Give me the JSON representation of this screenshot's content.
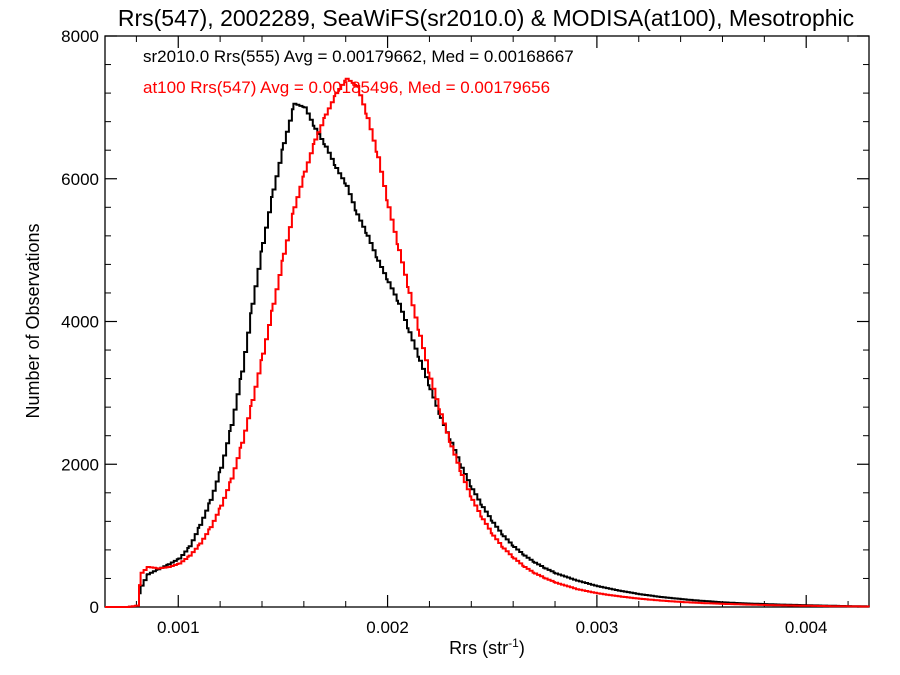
{
  "chart_data": {
    "type": "step-histogram",
    "title": "Rrs(547), 2002289, SeaWiFS(sr2010.0) & MODISA(at100), Mesotrophic",
    "xlabel": "Rrs (str",
    "xlabel_sup": "-1",
    "xlabel_end": ")",
    "ylabel": "Number of Observations",
    "xlim": [
      0.00065,
      0.0043
    ],
    "ylim": [
      0,
      8000
    ],
    "x_ticks": [
      {
        "value": 0.001,
        "label": "0.001"
      },
      {
        "value": 0.002,
        "label": "0.002"
      },
      {
        "value": 0.003,
        "label": "0.003"
      },
      {
        "value": 0.004,
        "label": "0.004"
      }
    ],
    "y_ticks": [
      {
        "value": 0,
        "label": "0"
      },
      {
        "value": 2000,
        "label": "2000"
      },
      {
        "value": 4000,
        "label": "4000"
      },
      {
        "value": 6000,
        "label": "6000"
      },
      {
        "value": 8000,
        "label": "8000"
      }
    ],
    "legend_placement": "top-left",
    "grid": false,
    "series": [
      {
        "legend_text": "sr2010.0 Rrs(555) Avg = 0.00179662, Med = 0.00168667",
        "color": "#000000",
        "points": [
          [
            0.00065,
            0
          ],
          [
            0.00075,
            0
          ],
          [
            0.0008,
            10
          ],
          [
            0.00082,
            300
          ],
          [
            0.00085,
            460
          ],
          [
            0.0009,
            530
          ],
          [
            0.00095,
            600
          ],
          [
            0.001,
            680
          ],
          [
            0.00105,
            850
          ],
          [
            0.0011,
            1150
          ],
          [
            0.00115,
            1500
          ],
          [
            0.0012,
            1950
          ],
          [
            0.00125,
            2550
          ],
          [
            0.0013,
            3300
          ],
          [
            0.00135,
            4250
          ],
          [
            0.0014,
            5100
          ],
          [
            0.00145,
            5850
          ],
          [
            0.0015,
            6500
          ],
          [
            0.00155,
            7050
          ],
          [
            0.0016,
            7000
          ],
          [
            0.00165,
            6700
          ],
          [
            0.0017,
            6450
          ],
          [
            0.00175,
            6150
          ],
          [
            0.0018,
            5900
          ],
          [
            0.00185,
            5500
          ],
          [
            0.0019,
            5200
          ],
          [
            0.00195,
            4850
          ],
          [
            0.002,
            4550
          ],
          [
            0.00205,
            4250
          ],
          [
            0.0021,
            3850
          ],
          [
            0.00215,
            3450
          ],
          [
            0.0022,
            3050
          ],
          [
            0.00225,
            2650
          ],
          [
            0.0023,
            2300
          ],
          [
            0.00235,
            1950
          ],
          [
            0.0024,
            1650
          ],
          [
            0.00245,
            1400
          ],
          [
            0.0025,
            1180
          ],
          [
            0.00255,
            990
          ],
          [
            0.0026,
            840
          ],
          [
            0.00265,
            720
          ],
          [
            0.0027,
            620
          ],
          [
            0.00275,
            540
          ],
          [
            0.0028,
            470
          ],
          [
            0.0029,
            370
          ],
          [
            0.003,
            290
          ],
          [
            0.0031,
            230
          ],
          [
            0.0032,
            180
          ],
          [
            0.0033,
            140
          ],
          [
            0.0034,
            110
          ],
          [
            0.0035,
            85
          ],
          [
            0.0036,
            65
          ],
          [
            0.0037,
            50
          ],
          [
            0.0038,
            40
          ],
          [
            0.0039,
            32
          ],
          [
            0.004,
            25
          ],
          [
            0.0041,
            18
          ],
          [
            0.0042,
            12
          ],
          [
            0.0043,
            8
          ]
        ]
      },
      {
        "legend_text": "at100 Rrs(547) Avg = 0.00185496, Med = 0.00179656",
        "color": "#ff0000",
        "points": [
          [
            0.00065,
            0
          ],
          [
            0.00075,
            0
          ],
          [
            0.0008,
            20
          ],
          [
            0.00082,
            480
          ],
          [
            0.00085,
            560
          ],
          [
            0.0009,
            540
          ],
          [
            0.00095,
            560
          ],
          [
            0.001,
            610
          ],
          [
            0.00105,
            720
          ],
          [
            0.0011,
            890
          ],
          [
            0.00115,
            1120
          ],
          [
            0.0012,
            1420
          ],
          [
            0.00125,
            1800
          ],
          [
            0.0013,
            2300
          ],
          [
            0.00135,
            2900
          ],
          [
            0.0014,
            3550
          ],
          [
            0.00145,
            4250
          ],
          [
            0.0015,
            4950
          ],
          [
            0.00155,
            5600
          ],
          [
            0.0016,
            6100
          ],
          [
            0.00165,
            6550
          ],
          [
            0.0017,
            6900
          ],
          [
            0.00175,
            7200
          ],
          [
            0.0018,
            7400
          ],
          [
            0.00185,
            7300
          ],
          [
            0.0019,
            6850
          ],
          [
            0.00195,
            6300
          ],
          [
            0.002,
            5600
          ],
          [
            0.00205,
            5000
          ],
          [
            0.0021,
            4400
          ],
          [
            0.00215,
            3800
          ],
          [
            0.0022,
            3200
          ],
          [
            0.00225,
            2700
          ],
          [
            0.0023,
            2250
          ],
          [
            0.00235,
            1850
          ],
          [
            0.0024,
            1500
          ],
          [
            0.00245,
            1230
          ],
          [
            0.0025,
            1000
          ],
          [
            0.00255,
            820
          ],
          [
            0.0026,
            680
          ],
          [
            0.00265,
            560
          ],
          [
            0.0027,
            470
          ],
          [
            0.00275,
            400
          ],
          [
            0.0028,
            340
          ],
          [
            0.0029,
            250
          ],
          [
            0.003,
            190
          ],
          [
            0.0031,
            150
          ],
          [
            0.0032,
            115
          ],
          [
            0.0033,
            90
          ],
          [
            0.0034,
            70
          ],
          [
            0.0035,
            55
          ],
          [
            0.0036,
            44
          ],
          [
            0.0037,
            35
          ],
          [
            0.0038,
            28
          ],
          [
            0.0039,
            22
          ],
          [
            0.004,
            17
          ],
          [
            0.0041,
            12
          ],
          [
            0.0042,
            9
          ],
          [
            0.0043,
            6
          ]
        ]
      }
    ]
  }
}
